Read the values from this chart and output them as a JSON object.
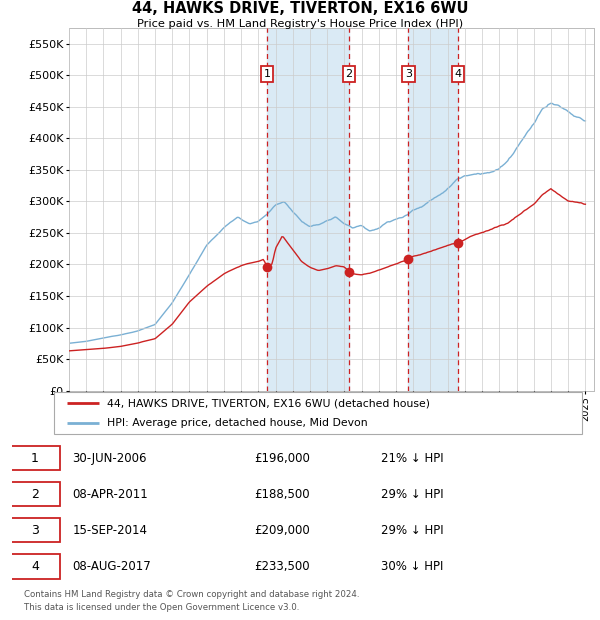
{
  "title": "44, HAWKS DRIVE, TIVERTON, EX16 6WU",
  "subtitle": "Price paid vs. HM Land Registry's House Price Index (HPI)",
  "legend_line1": "44, HAWKS DRIVE, TIVERTON, EX16 6WU (detached house)",
  "legend_line2": "HPI: Average price, detached house, Mid Devon",
  "footer1": "Contains HM Land Registry data © Crown copyright and database right 2024.",
  "footer2": "This data is licensed under the Open Government Licence v3.0.",
  "sales": [
    {
      "num": 1,
      "date_label": "30-JUN-2006",
      "price": "£196,000",
      "pct": "21% ↓ HPI",
      "year": 2006.5,
      "prop_price": 196000
    },
    {
      "num": 2,
      "date_label": "08-APR-2011",
      "price": "£188,500",
      "pct": "29% ↓ HPI",
      "year": 2011.27,
      "prop_price": 188500
    },
    {
      "num": 3,
      "date_label": "15-SEP-2014",
      "price": "£209,000",
      "pct": "29% ↓ HPI",
      "year": 2014.71,
      "prop_price": 209000
    },
    {
      "num": 4,
      "date_label": "08-AUG-2017",
      "price": "£233,500",
      "pct": "30% ↓ HPI",
      "year": 2017.6,
      "prop_price": 233500
    }
  ],
  "ylim": [
    0,
    575000
  ],
  "yticks": [
    0,
    50000,
    100000,
    150000,
    200000,
    250000,
    300000,
    350000,
    400000,
    450000,
    500000,
    550000
  ],
  "xlim_start": 1995.0,
  "xlim_end": 2025.5,
  "hpi_color": "#7ab0d4",
  "price_color": "#cc2222",
  "vline_color": "#cc2222",
  "shade_color": "#daeaf5",
  "number_box_color": "#cc2222",
  "bg_color": "#f0f0f0"
}
